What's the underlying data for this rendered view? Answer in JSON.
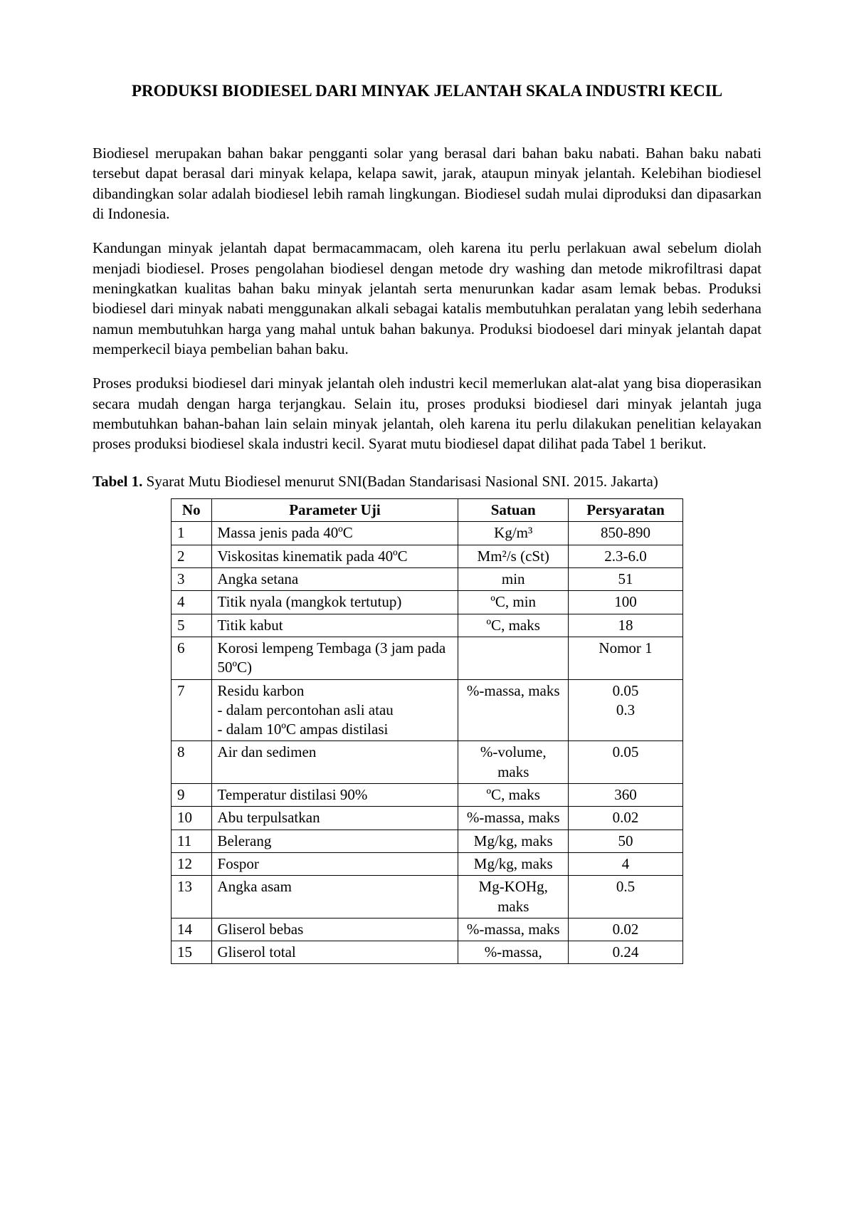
{
  "title": "PRODUKSI BIODIESEL DARI MINYAK JELANTAH SKALA INDUSTRI KECIL",
  "paragraphs": {
    "p1": "Biodiesel merupakan bahan bakar pengganti solar yang berasal dari bahan baku nabati. Bahan baku nabati tersebut dapat berasal dari minyak kelapa, kelapa sawit, jarak, ataupun minyak jelantah. Kelebihan biodiesel dibandingkan solar adalah biodiesel lebih ramah lingkungan. Biodiesel sudah mulai diproduksi dan dipasarkan di Indonesia.",
    "p2": "Kandungan minyak jelantah dapat bermacammacam, oleh karena itu perlu perlakuan awal sebelum diolah menjadi biodiesel. Proses pengolahan biodiesel dengan metode dry washing dan metode mikrofiltrasi dapat meningkatkan kualitas bahan baku minyak jelantah serta menurunkan kadar asam lemak bebas. Produksi biodiesel dari minyak nabati menggunakan alkali sebagai katalis membutuhkan peralatan yang lebih sederhana namun membutuhkan harga yang mahal untuk bahan bakunya. Produksi biodoesel dari minyak jelantah dapat memperkecil biaya pembelian bahan baku.",
    "p3": "Proses produksi biodiesel dari minyak jelantah oleh industri kecil memerlukan alat-alat yang bisa dioperasikan secara mudah dengan harga terjangkau. Selain itu, proses produksi biodiesel dari minyak jelantah juga membutuhkan bahan-bahan lain selain minyak jelantah, oleh karena itu perlu dilakukan penelitian kelayakan proses produksi biodiesel skala industri kecil. Syarat mutu biodiesel dapat dilihat pada Tabel 1 berikut."
  },
  "table_caption": {
    "label": "Tabel 1.",
    "text": " Syarat Mutu Biodiesel menurut SNI(Badan Standarisasi Nasional SNI. 2015. Jakarta)"
  },
  "table": {
    "headers": {
      "no": "No",
      "param": "Parameter Uji",
      "satuan": "Satuan",
      "persy": "Persyaratan"
    },
    "rows": [
      {
        "no": "1",
        "param": "Massa jenis pada 40ºC",
        "satuan": "Kg/m³",
        "persy": "850-890"
      },
      {
        "no": "2",
        "param": "Viskositas kinematik pada 40ºC",
        "satuan": "Mm²/s (cSt)",
        "persy": "2.3-6.0"
      },
      {
        "no": "3",
        "param": "Angka setana",
        "satuan": "min",
        "persy": "51"
      },
      {
        "no": "4",
        "param": "Titik nyala (mangkok tertutup)",
        "satuan": "ºC, min",
        "persy": "100"
      },
      {
        "no": "5",
        "param": "Titik kabut",
        "satuan": "ºC, maks",
        "persy": "18"
      },
      {
        "no": "6",
        "param": "Korosi lempeng Tembaga (3 jam pada 50ºC)",
        "satuan": "",
        "persy": "Nomor 1"
      },
      {
        "no": "7",
        "param": "Residu karbon\n- dalam percontohan asli atau\n- dalam 10ºC ampas distilasi",
        "satuan": "%-massa, maks",
        "persy": "0.05\n0.3"
      },
      {
        "no": "8",
        "param": "Air dan sedimen",
        "satuan": "%-volume, maks",
        "persy": "0.05"
      },
      {
        "no": "9",
        "param": "Temperatur distilasi 90%",
        "satuan": "ºC, maks",
        "persy": "360"
      },
      {
        "no": "10",
        "param": "Abu terpulsatkan",
        "satuan": "%-massa, maks",
        "persy": "0.02"
      },
      {
        "no": "11",
        "param": "Belerang",
        "satuan": "Mg/kg, maks",
        "persy": "50"
      },
      {
        "no": "12",
        "param": "Fospor",
        "satuan": "Mg/kg, maks",
        "persy": "4"
      },
      {
        "no": "13",
        "param": "Angka asam",
        "satuan": "Mg-KOHg, maks",
        "persy": "0.5"
      },
      {
        "no": "14",
        "param": "Gliserol bebas",
        "satuan": "%-massa, maks",
        "persy": "0.02"
      },
      {
        "no": "15",
        "param": "Gliserol total",
        "satuan": "%-massa,",
        "persy": "0.24"
      }
    ]
  }
}
